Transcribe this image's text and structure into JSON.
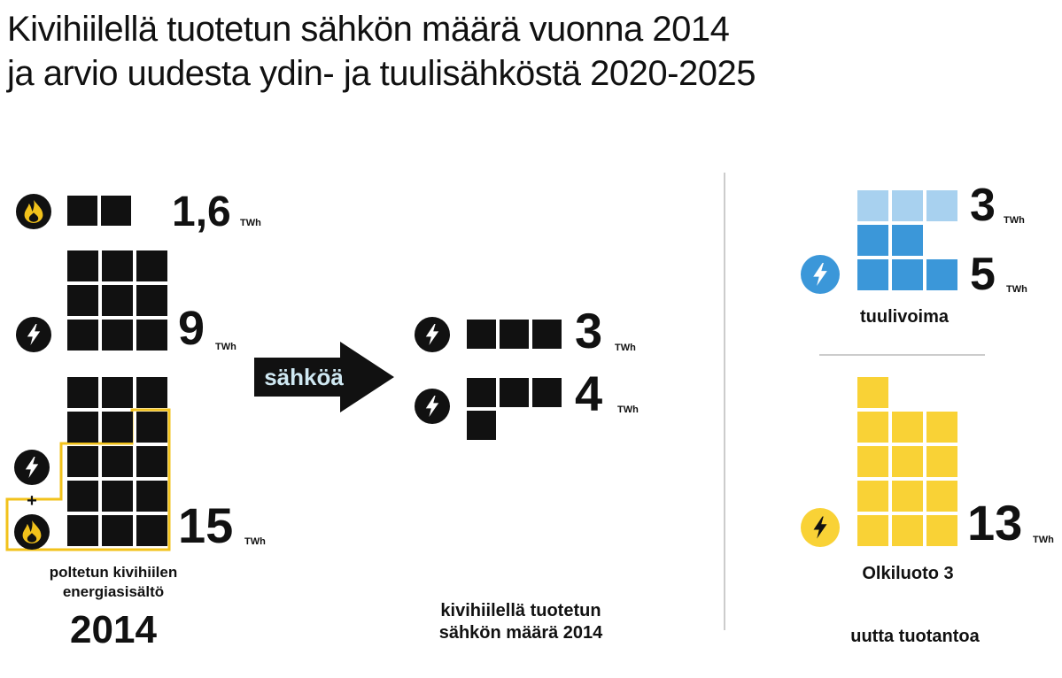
{
  "title": {
    "line1": "Kivihiilellä tuotetun sähkön määrä vuonna 2014",
    "line2": "ja arvio uudesta ydin- ja tuulisähköstä 2020-2025"
  },
  "colors": {
    "black": "#111111",
    "gold": "#f2c21b",
    "wind_light": "#a8d1ef",
    "wind_dark": "#3b97d9",
    "olkiluoto": "#f9d236",
    "divider": "#cccccc"
  },
  "icons": {
    "fire": "fire-icon",
    "lightning": "lightning-icon",
    "arrow": "arrow-right-icon"
  },
  "chart_data": {
    "type": "table",
    "unit": "TWh",
    "sections": {
      "left": {
        "label_line1": "poltetun kivihiilen",
        "label_line2": "energiasisältö",
        "year": "2014"
      },
      "middle": {
        "arrow_label": "sähköä",
        "label_line1": "kivihiilellä tuotetun",
        "label_line2": "sähkön määrä 2014"
      },
      "right": {
        "wind_label": "tuulivoima",
        "nuclear_label": "Olkiluoto 3",
        "footer": "uutta tuotantoa"
      }
    },
    "items": [
      {
        "id": "heat_only",
        "section": "left",
        "kind": "heat",
        "value": 1.6,
        "label": "1,6"
      },
      {
        "id": "electricity_only",
        "section": "left",
        "kind": "electricity",
        "value": 9,
        "label": "9"
      },
      {
        "id": "chp",
        "section": "left",
        "kind": "electricity+heat",
        "value": 15,
        "label": "15"
      },
      {
        "id": "from_separate",
        "section": "middle",
        "kind": "electricity",
        "value": 3,
        "label": "3"
      },
      {
        "id": "from_chp",
        "section": "middle",
        "kind": "electricity",
        "value": 4,
        "label": "4"
      },
      {
        "id": "wind_a",
        "section": "right",
        "kind": "wind",
        "value": 3,
        "label": "3"
      },
      {
        "id": "wind_b",
        "section": "right",
        "kind": "wind",
        "value": 5,
        "label": "5"
      },
      {
        "id": "olkiluoto3",
        "section": "right",
        "kind": "nuclear",
        "value": 13,
        "label": "13"
      }
    ]
  }
}
